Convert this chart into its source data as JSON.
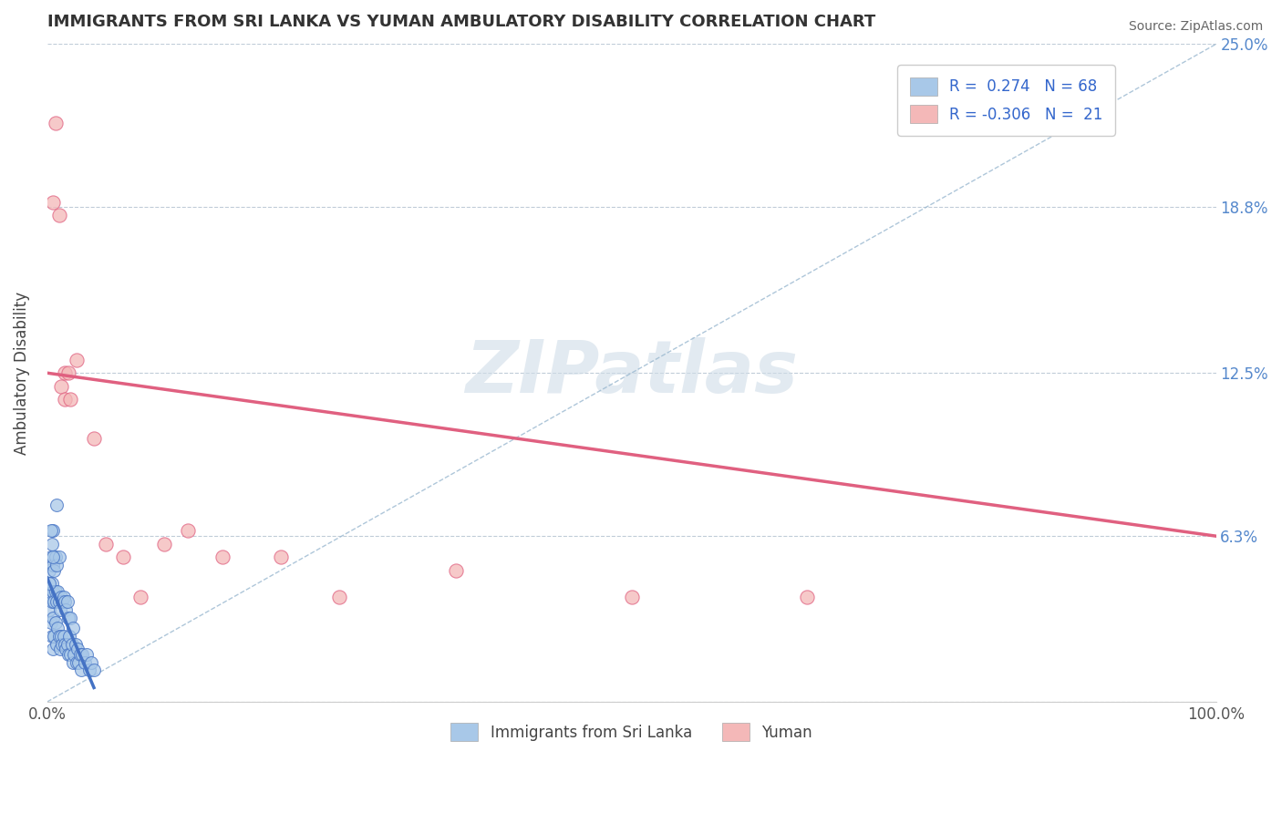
{
  "title": "IMMIGRANTS FROM SRI LANKA VS YUMAN AMBULATORY DISABILITY CORRELATION CHART",
  "source": "Source: ZipAtlas.com",
  "ylabel": "Ambulatory Disability",
  "xlim": [
    0,
    1.0
  ],
  "ylim": [
    0,
    0.25
  ],
  "ytick_vals": [
    0.0,
    0.063,
    0.125,
    0.188,
    0.25
  ],
  "ytick_labels_right": [
    "",
    "6.3%",
    "12.5%",
    "18.8%",
    "25.0%"
  ],
  "xtick_vals": [
    0.0,
    1.0
  ],
  "xtick_labels": [
    "0.0%",
    "100.0%"
  ],
  "color_blue": "#a8c8e8",
  "color_pink": "#f4b8b8",
  "color_blue_line": "#4472c4",
  "color_pink_line": "#e06080",
  "color_diag": "#9ab8d0",
  "watermark_text": "ZIPatlas",
  "blue_scatter_x": [
    0.001,
    0.002,
    0.002,
    0.003,
    0.003,
    0.003,
    0.004,
    0.004,
    0.004,
    0.004,
    0.005,
    0.005,
    0.005,
    0.005,
    0.005,
    0.006,
    0.006,
    0.006,
    0.007,
    0.007,
    0.007,
    0.008,
    0.008,
    0.008,
    0.009,
    0.009,
    0.01,
    0.01,
    0.01,
    0.011,
    0.011,
    0.012,
    0.012,
    0.013,
    0.013,
    0.014,
    0.014,
    0.015,
    0.015,
    0.016,
    0.016,
    0.017,
    0.017,
    0.018,
    0.018,
    0.019,
    0.02,
    0.02,
    0.021,
    0.022,
    0.022,
    0.023,
    0.024,
    0.025,
    0.026,
    0.027,
    0.028,
    0.029,
    0.03,
    0.032,
    0.034,
    0.036,
    0.038,
    0.04,
    0.002,
    0.003,
    0.005,
    0.008
  ],
  "blue_scatter_y": [
    0.04,
    0.035,
    0.05,
    0.03,
    0.04,
    0.055,
    0.025,
    0.038,
    0.045,
    0.06,
    0.02,
    0.032,
    0.042,
    0.052,
    0.065,
    0.025,
    0.038,
    0.05,
    0.03,
    0.042,
    0.055,
    0.022,
    0.038,
    0.052,
    0.028,
    0.042,
    0.025,
    0.038,
    0.055,
    0.02,
    0.035,
    0.025,
    0.04,
    0.022,
    0.038,
    0.025,
    0.04,
    0.022,
    0.038,
    0.02,
    0.035,
    0.022,
    0.038,
    0.018,
    0.032,
    0.025,
    0.018,
    0.032,
    0.022,
    0.015,
    0.028,
    0.018,
    0.022,
    0.015,
    0.02,
    0.015,
    0.018,
    0.012,
    0.018,
    0.015,
    0.018,
    0.012,
    0.015,
    0.012,
    0.045,
    0.065,
    0.055,
    0.075
  ],
  "pink_scatter_x": [
    0.005,
    0.007,
    0.01,
    0.012,
    0.015,
    0.015,
    0.018,
    0.02,
    0.025,
    0.04,
    0.05,
    0.065,
    0.08,
    0.1,
    0.12,
    0.15,
    0.2,
    0.25,
    0.35,
    0.5,
    0.65
  ],
  "pink_scatter_y": [
    0.19,
    0.22,
    0.185,
    0.12,
    0.125,
    0.115,
    0.125,
    0.115,
    0.13,
    0.1,
    0.06,
    0.055,
    0.04,
    0.06,
    0.065,
    0.055,
    0.055,
    0.04,
    0.05,
    0.04,
    0.04
  ],
  "pink_line_x0": 0.0,
  "pink_line_x1": 1.0,
  "pink_line_y0": 0.125,
  "pink_line_y1": 0.063
}
